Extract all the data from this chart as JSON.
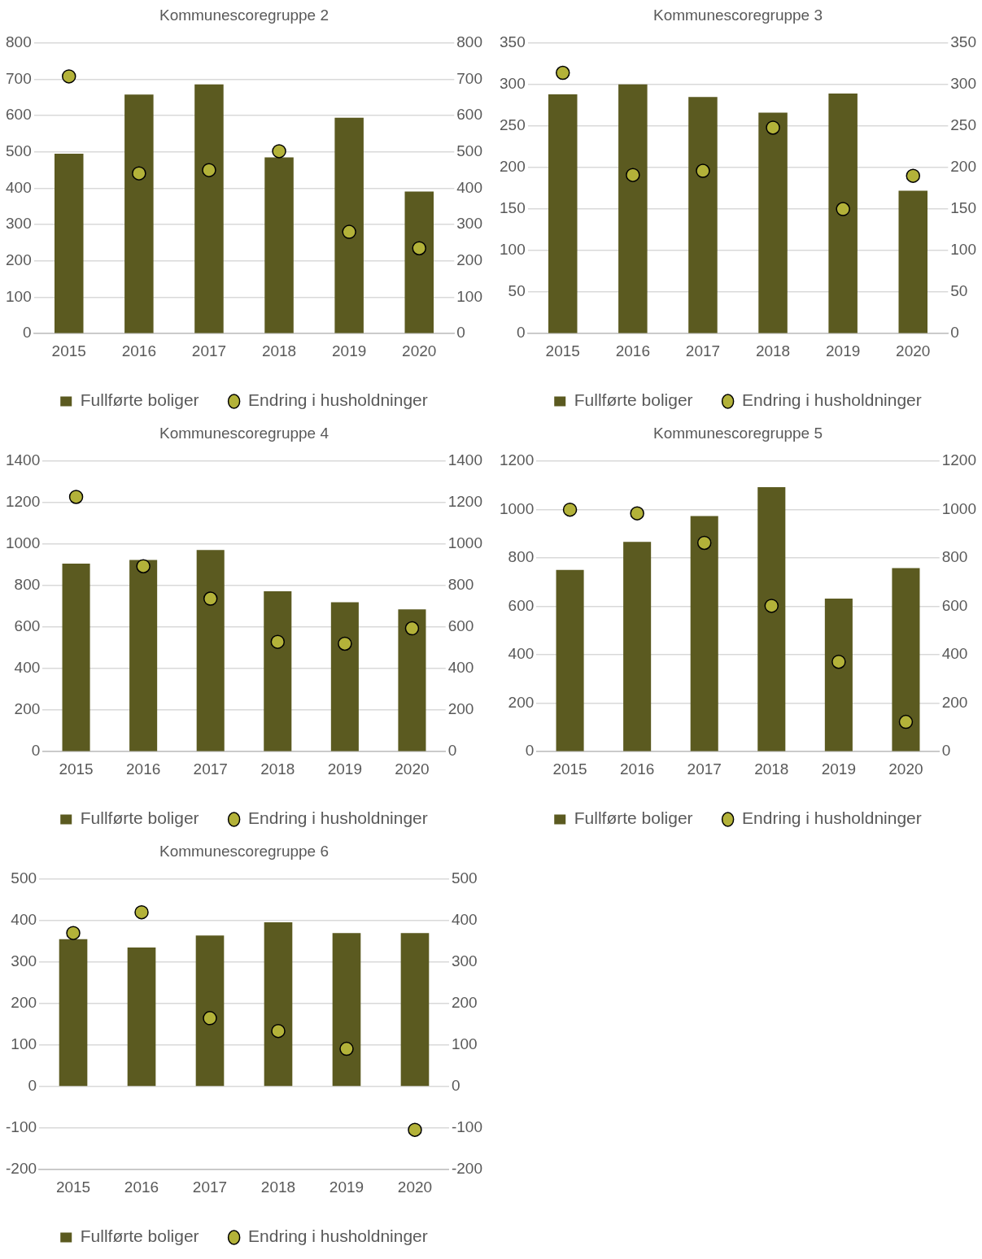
{
  "chart_data": [
    {
      "type": "bar",
      "title": "Kommunescoregruppe 2",
      "categories": [
        "2015",
        "2016",
        "2017",
        "2018",
        "2019",
        "2020"
      ],
      "series": [
        {
          "name": "Fullførte boliger",
          "color": "#5b5a20",
          "values": [
            495,
            658,
            686,
            485,
            594,
            391
          ]
        },
        {
          "name": "Endring i husholdninger",
          "type": "scatter",
          "color": "#b3b239",
          "values": [
            708,
            441,
            450,
            502,
            280,
            235
          ]
        }
      ],
      "ylim": [
        0,
        800
      ],
      "yticks": [
        0,
        100,
        200,
        300,
        400,
        500,
        600,
        700,
        800
      ],
      "y2lim": [
        0,
        800
      ],
      "y2ticks": [
        0,
        100,
        200,
        300,
        400,
        500,
        600,
        700,
        800
      ],
      "grid": "y",
      "legend": "bottom",
      "marker": "circle"
    },
    {
      "type": "bar",
      "title": "Kommunescoregruppe 3",
      "categories": [
        "2015",
        "2016",
        "2017",
        "2018",
        "2019",
        "2020"
      ],
      "series": [
        {
          "name": "Fullførte boliger",
          "color": "#5b5a20",
          "values": [
            288,
            300,
            285,
            266,
            289,
            172
          ]
        },
        {
          "name": "Endring i husholdninger",
          "type": "scatter",
          "color": "#b3b239",
          "values": [
            314,
            191,
            196,
            248,
            150,
            190
          ]
        }
      ],
      "ylim": [
        0,
        350
      ],
      "yticks": [
        0,
        50,
        100,
        150,
        200,
        250,
        300,
        350
      ],
      "y2lim": [
        0,
        350
      ],
      "y2ticks": [
        0,
        50,
        100,
        150,
        200,
        250,
        300,
        350
      ],
      "grid": "y",
      "legend": "bottom",
      "marker": "circle"
    },
    {
      "type": "bar",
      "title": "Kommunescoregruppe 4",
      "categories": [
        "2015",
        "2016",
        "2017",
        "2018",
        "2019",
        "2020"
      ],
      "series": [
        {
          "name": "Fullførte boliger",
          "color": "#5b5a20",
          "values": [
            906,
            923,
            971,
            772,
            720,
            685
          ]
        },
        {
          "name": "Endring i husholdninger",
          "type": "scatter",
          "color": "#b3b239",
          "values": [
            1227,
            893,
            737,
            529,
            520,
            594
          ]
        }
      ],
      "ylim": [
        0,
        1400
      ],
      "yticks": [
        0,
        200,
        400,
        600,
        800,
        1000,
        1200,
        1400
      ],
      "y2lim": [
        0,
        1400
      ],
      "y2ticks": [
        0,
        200,
        400,
        600,
        800,
        1000,
        1200,
        1400
      ],
      "grid": "y",
      "legend": "bottom",
      "marker": "circle"
    },
    {
      "type": "bar",
      "title": "Kommunescoregruppe 5",
      "categories": [
        "2015",
        "2016",
        "2017",
        "2018",
        "2019",
        "2020"
      ],
      "series": [
        {
          "name": "Fullførte boliger",
          "color": "#5b5a20",
          "values": [
            750,
            866,
            973,
            1092,
            632,
            758
          ]
        },
        {
          "name": "Endring i husholdninger",
          "type": "scatter",
          "color": "#b3b239",
          "values": [
            999,
            984,
            862,
            602,
            371,
            123
          ]
        }
      ],
      "ylim": [
        0,
        1200
      ],
      "yticks": [
        0,
        200,
        400,
        600,
        800,
        1000,
        1200
      ],
      "y2lim": [
        0,
        1200
      ],
      "y2ticks": [
        0,
        200,
        400,
        600,
        800,
        1000,
        1200
      ],
      "grid": "y",
      "legend": "bottom",
      "marker": "circle"
    },
    {
      "type": "bar",
      "title": "Kommunescoregruppe 6",
      "categories": [
        "2015",
        "2016",
        "2017",
        "2018",
        "2019",
        "2020"
      ],
      "series": [
        {
          "name": "Fullførte boliger",
          "color": "#5b5a20",
          "values": [
            355,
            335,
            364,
            396,
            370,
            370
          ]
        },
        {
          "name": "Endring i husholdninger",
          "type": "scatter",
          "color": "#b3b239",
          "values": [
            370,
            420,
            165,
            134,
            91,
            -104
          ]
        }
      ],
      "ylim": [
        -200,
        500
      ],
      "yticks": [
        -200,
        -100,
        0,
        100,
        200,
        300,
        400,
        500
      ],
      "y2lim": [
        -200,
        500
      ],
      "y2ticks": [
        -200,
        -100,
        0,
        100,
        200,
        300,
        400,
        500
      ],
      "grid": "y",
      "legend": "bottom",
      "marker": "circle"
    }
  ]
}
